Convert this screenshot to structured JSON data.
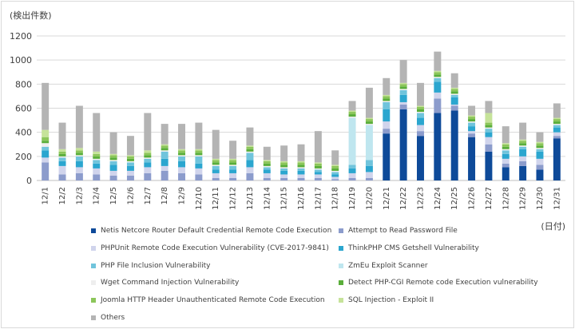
{
  "chart_data": {
    "type": "bar",
    "stacked": true,
    "title": "",
    "ylabel": "(検出件数)",
    "xlabel": "(日付)",
    "ylim": [
      0,
      1200
    ],
    "yticks": [
      0,
      200,
      400,
      600,
      800,
      1000,
      1200
    ],
    "grid": true,
    "legend_position": "bottom",
    "categories": [
      "12/1",
      "12/2",
      "12/3",
      "12/4",
      "12/5",
      "12/6",
      "12/7",
      "12/8",
      "12/9",
      "12/10",
      "12/11",
      "12/12",
      "12/13",
      "12/14",
      "12/15",
      "12/16",
      "12/17",
      "12/18",
      "12/19",
      "12/20",
      "12/21",
      "12/22",
      "12/23",
      "12/24",
      "12/25",
      "12/26",
      "12/27",
      "12/28",
      "12/29",
      "12/30",
      "12/31"
    ],
    "series": [
      {
        "name": "Netis Netcore Router Default Credential Remote Code Execution",
        "color": "#0e4a99",
        "values": [
          0,
          0,
          0,
          0,
          0,
          0,
          0,
          0,
          0,
          0,
          0,
          0,
          0,
          0,
          0,
          0,
          0,
          0,
          0,
          0,
          390,
          590,
          370,
          560,
          580,
          360,
          240,
          110,
          120,
          90,
          350
        ]
      },
      {
        "name": "Attempt to Read Password File",
        "color": "#8c9ccc",
        "values": [
          150,
          50,
          60,
          50,
          40,
          40,
          60,
          80,
          60,
          50,
          20,
          20,
          60,
          20,
          20,
          20,
          20,
          10,
          20,
          20,
          40,
          40,
          40,
          120,
          40,
          30,
          60,
          30,
          40,
          40,
          20
        ]
      },
      {
        "name": "PHPUnit Remote Code Execution Vulnerability (CVE-2017-9841)",
        "color": "#d0d4ec",
        "values": [
          40,
          70,
          50,
          50,
          40,
          40,
          50,
          40,
          50,
          50,
          40,
          40,
          50,
          40,
          30,
          30,
          30,
          20,
          40,
          50,
          60,
          20,
          50,
          50,
          10,
          20,
          60,
          40,
          40,
          50,
          30
        ]
      },
      {
        "name": "ThinkPHP CMS Getshell Vulnerability",
        "color": "#2ba6cf",
        "values": [
          60,
          40,
          50,
          40,
          50,
          40,
          40,
          60,
          50,
          40,
          30,
          30,
          60,
          30,
          30,
          30,
          20,
          20,
          40,
          50,
          100,
          60,
          60,
          90,
          60,
          40,
          40,
          40,
          60,
          60,
          40
        ]
      },
      {
        "name": "PHP File Inclusion Vulnerability",
        "color": "#70c4dc",
        "values": [
          30,
          30,
          40,
          30,
          30,
          30,
          30,
          60,
          40,
          60,
          30,
          30,
          60,
          20,
          20,
          20,
          20,
          20,
          30,
          50,
          60,
          40,
          40,
          30,
          20,
          30,
          30,
          30,
          20,
          20,
          20
        ]
      },
      {
        "name": "ZmEu Exploit Scanner",
        "color": "#bfe6ef",
        "values": [
          0,
          0,
          0,
          0,
          0,
          0,
          0,
          0,
          0,
          0,
          0,
          0,
          0,
          0,
          0,
          0,
          0,
          0,
          390,
          290,
          0,
          0,
          0,
          0,
          0,
          0,
          0,
          0,
          0,
          0,
          0
        ]
      },
      {
        "name": "Wget Command Injection Vulnerability",
        "color": "#eeeeee",
        "values": [
          30,
          10,
          10,
          10,
          10,
          10,
          10,
          10,
          10,
          10,
          10,
          10,
          10,
          10,
          10,
          10,
          10,
          10,
          10,
          10,
          10,
          10,
          10,
          10,
          10,
          10,
          10,
          10,
          10,
          10,
          10
        ]
      },
      {
        "name": "Detect PHP-CGI Remote code Execution vulnerability",
        "color": "#5aae3a",
        "values": [
          20,
          20,
          20,
          20,
          20,
          20,
          20,
          20,
          20,
          20,
          20,
          20,
          20,
          20,
          20,
          20,
          20,
          20,
          20,
          20,
          20,
          20,
          20,
          20,
          20,
          20,
          20,
          20,
          20,
          20,
          20
        ]
      },
      {
        "name": "Joomla HTTP Header Unauthenticated Remote Code Execution",
        "color": "#8cc65a",
        "values": [
          30,
          20,
          20,
          20,
          20,
          20,
          20,
          20,
          20,
          20,
          20,
          20,
          20,
          20,
          20,
          20,
          20,
          20,
          20,
          20,
          20,
          20,
          20,
          20,
          20,
          20,
          20,
          20,
          20,
          20,
          20
        ]
      },
      {
        "name": "SQL Injection - Exploit II",
        "color": "#c6e39a",
        "values": [
          60,
          20,
          20,
          20,
          10,
          10,
          20,
          10,
          10,
          10,
          10,
          10,
          10,
          10,
          10,
          10,
          10,
          10,
          10,
          10,
          10,
          10,
          10,
          10,
          10,
          10,
          80,
          10,
          10,
          10,
          10
        ]
      },
      {
        "name": "Others",
        "color": "#b4b4b4",
        "values": [
          390,
          220,
          350,
          320,
          180,
          160,
          310,
          170,
          210,
          220,
          240,
          150,
          150,
          110,
          130,
          140,
          260,
          120,
          80,
          250,
          140,
          190,
          190,
          160,
          120,
          80,
          100,
          140,
          140,
          80,
          120
        ]
      }
    ]
  }
}
